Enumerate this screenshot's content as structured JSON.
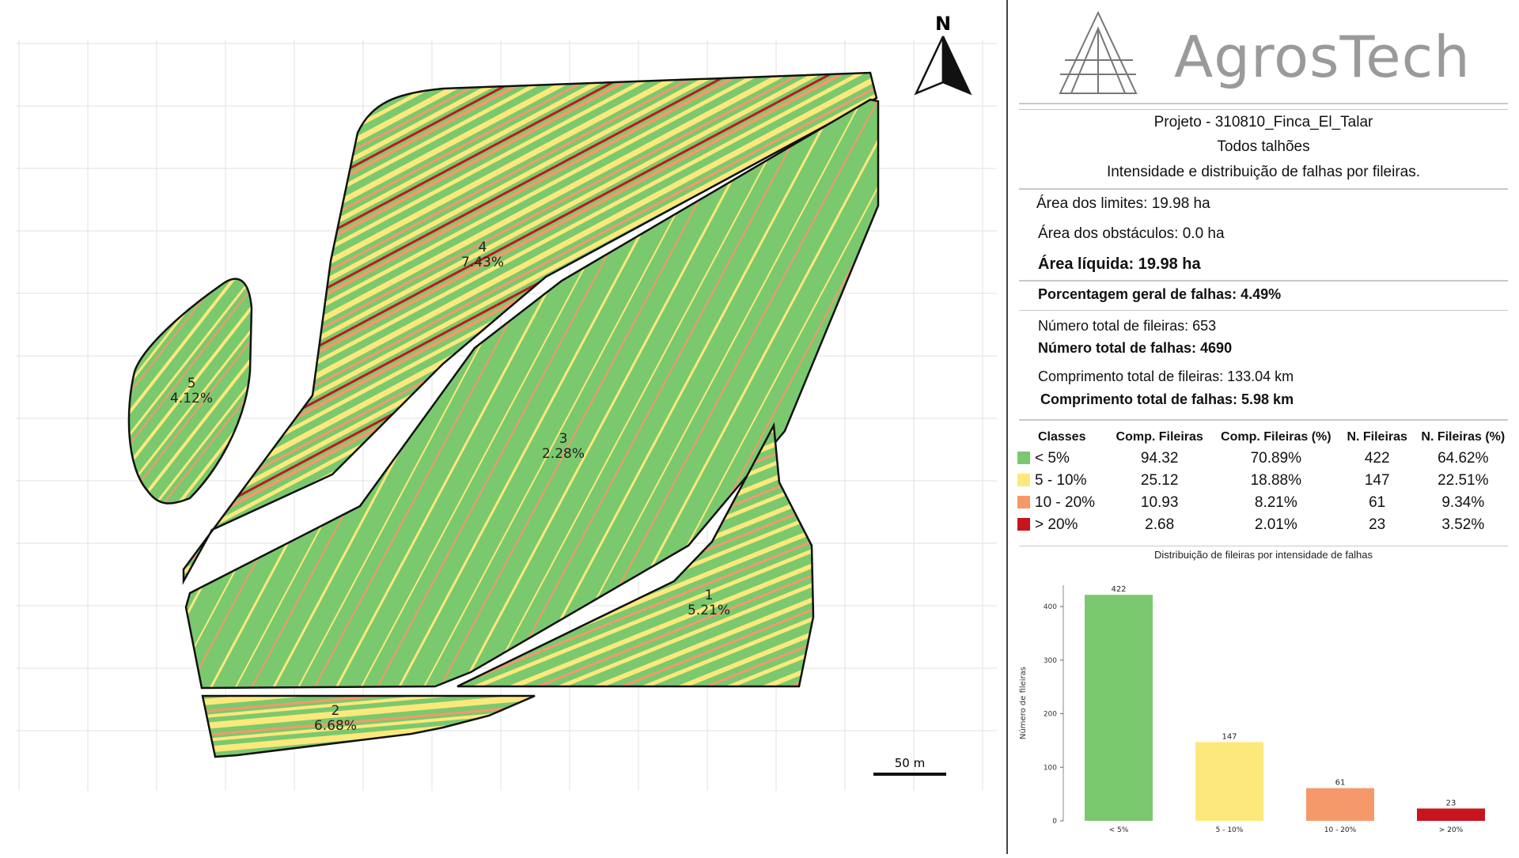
{
  "map": {
    "north_label": "N",
    "scale_label": "50 m",
    "fields": [
      {
        "id": "1",
        "pct": "5.21%"
      },
      {
        "id": "2",
        "pct": "6.68%"
      },
      {
        "id": "3",
        "pct": "2.28%"
      },
      {
        "id": "4",
        "pct": "7.43%"
      },
      {
        "id": "5",
        "pct": "4.12%"
      }
    ],
    "colors": {
      "green": "#7ac96e",
      "yellow": "#fde87c",
      "orange": "#f5986a",
      "red": "#c8141c"
    }
  },
  "report": {
    "brand": "AgrosTech",
    "project": "Projeto - 310810_Finca_El_Talar",
    "scope": "Todos talhões",
    "subtitle": "Intensidade e distribuição de falhas por fileiras.",
    "area_limits": "Área dos limites: 19.98 ha",
    "area_obstacles": "Área dos obstáculos: 0.0 ha",
    "area_net": "Área líquida: 19.98 ha",
    "overall_failure": "Porcentagem geral de falhas: 4.49%",
    "total_rows": "Número total de fileiras: 653",
    "total_failures": "Número total de falhas: 4690",
    "total_row_length": "Comprimento total de fileiras: 133.04 km",
    "total_failure_length": "Comprimento total de falhas: 5.98 km",
    "table": {
      "headers": [
        "Classes",
        "Comp. Fileiras",
        "Comp. Fileiras (%)",
        "N. Fileiras",
        "N. Fileiras (%)"
      ],
      "rows": [
        {
          "cls": "< 5%",
          "len": "94.32",
          "len_pct": "70.89%",
          "n": "422",
          "n_pct": "64.62%",
          "color": "#7ac96e"
        },
        {
          "cls": "5 - 10%",
          "len": "25.12",
          "len_pct": "18.88%",
          "n": "147",
          "n_pct": "22.51%",
          "color": "#fde87c"
        },
        {
          "cls": "10 - 20%",
          "len": "10.93",
          "len_pct": "8.21%",
          "n": "61",
          "n_pct": "9.34%",
          "color": "#f5986a"
        },
        {
          "cls": "> 20%",
          "len": "2.68",
          "len_pct": "2.01%",
          "n": "23",
          "n_pct": "3.52%",
          "color": "#c8141c"
        }
      ]
    }
  },
  "chart_data": {
    "type": "bar",
    "title": "Distribuição de fileiras por intensidade de falhas",
    "ylabel": "Número de fileiras",
    "xlabel": "",
    "categories": [
      "< 5%",
      "5 - 10%",
      "10 - 20%",
      "> 20%"
    ],
    "values": [
      422,
      147,
      61,
      23
    ],
    "value_labels": [
      "422",
      "147",
      "61",
      "23"
    ],
    "colors": [
      "#7ac96e",
      "#fde87c",
      "#f5986a",
      "#c8141c"
    ],
    "ylim": [
      0,
      440
    ],
    "yticks": [
      0,
      100,
      200,
      300,
      400
    ],
    "ytick_labels": [
      "0",
      "100",
      "200",
      "300",
      "400"
    ],
    "grid": false
  }
}
